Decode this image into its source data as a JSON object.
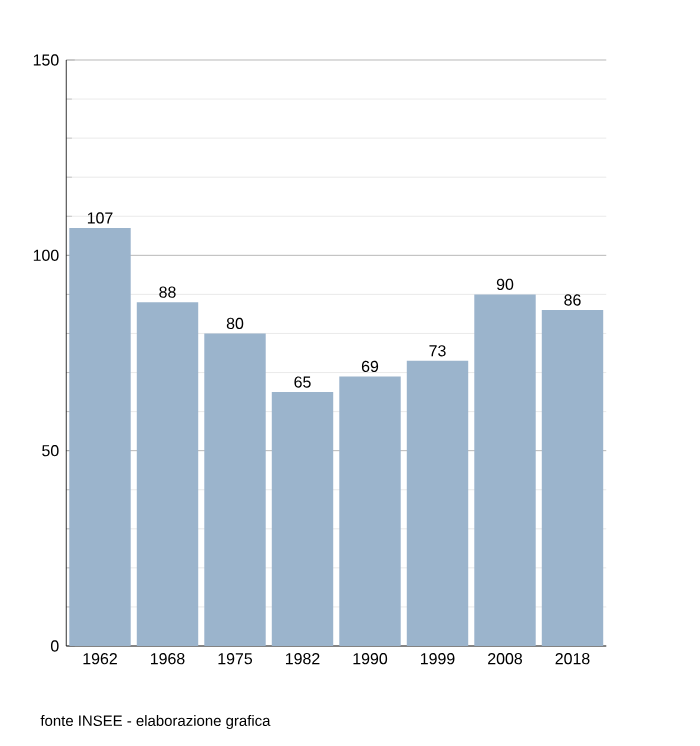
{
  "chart_data": {
    "type": "bar",
    "categories": [
      "1962",
      "1968",
      "1975",
      "1982",
      "1990",
      "1999",
      "2008",
      "2018"
    ],
    "values": [
      107,
      88,
      80,
      65,
      69,
      73,
      90,
      86
    ],
    "color": "#9bb4cc",
    "ylim": [
      0,
      150
    ],
    "yticks": [
      0,
      50,
      100,
      150
    ],
    "grid": "y",
    "data_labels": true,
    "annotations": [
      "fonte INSEE - elaborazione grafica"
    ]
  }
}
